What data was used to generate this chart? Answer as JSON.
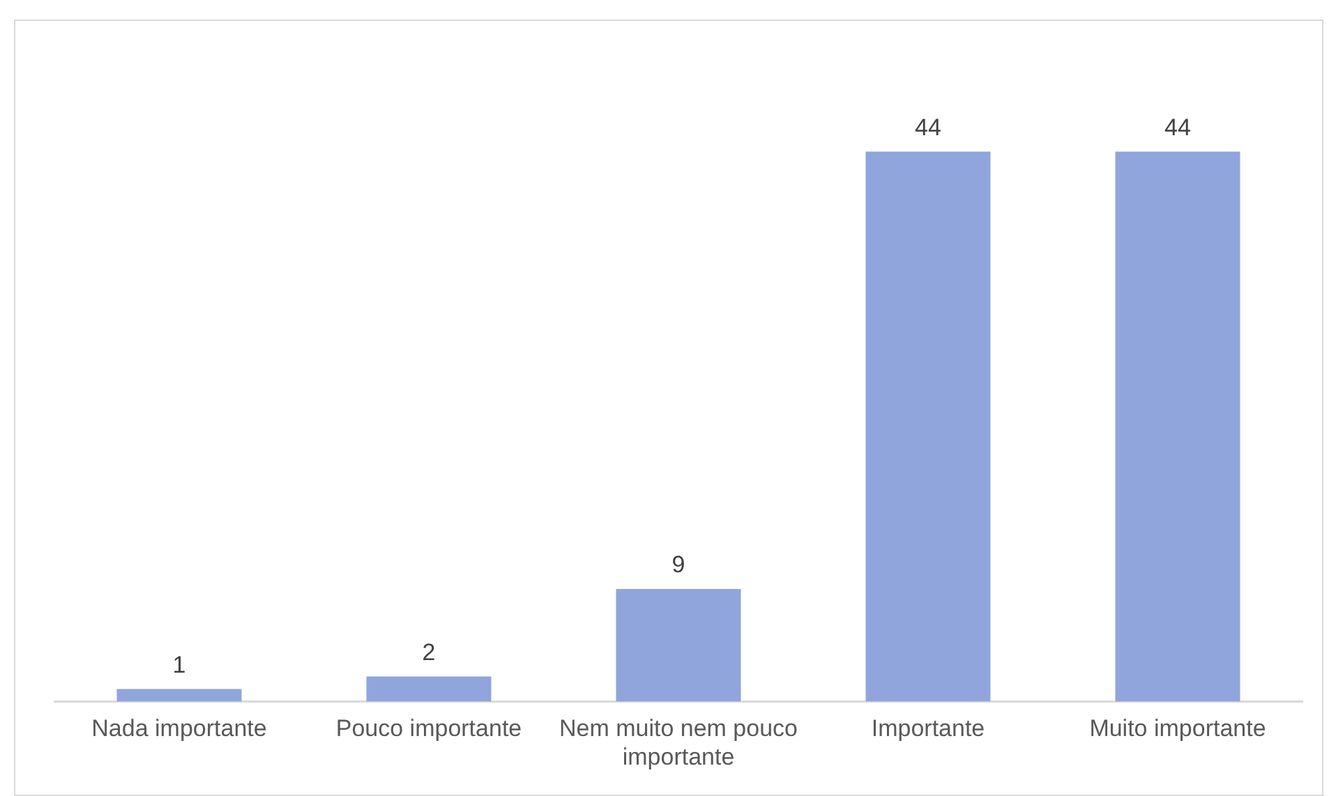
{
  "chart_data": {
    "type": "bar",
    "categories": [
      "Nada importante",
      "Pouco importante",
      "Nem muito nem pouco importante",
      "Importante",
      "Muito importante"
    ],
    "values": [
      1,
      2,
      9,
      44,
      44
    ],
    "color": "#8fa5dc",
    "data_labels": true,
    "grid": false,
    "legend": false
  }
}
